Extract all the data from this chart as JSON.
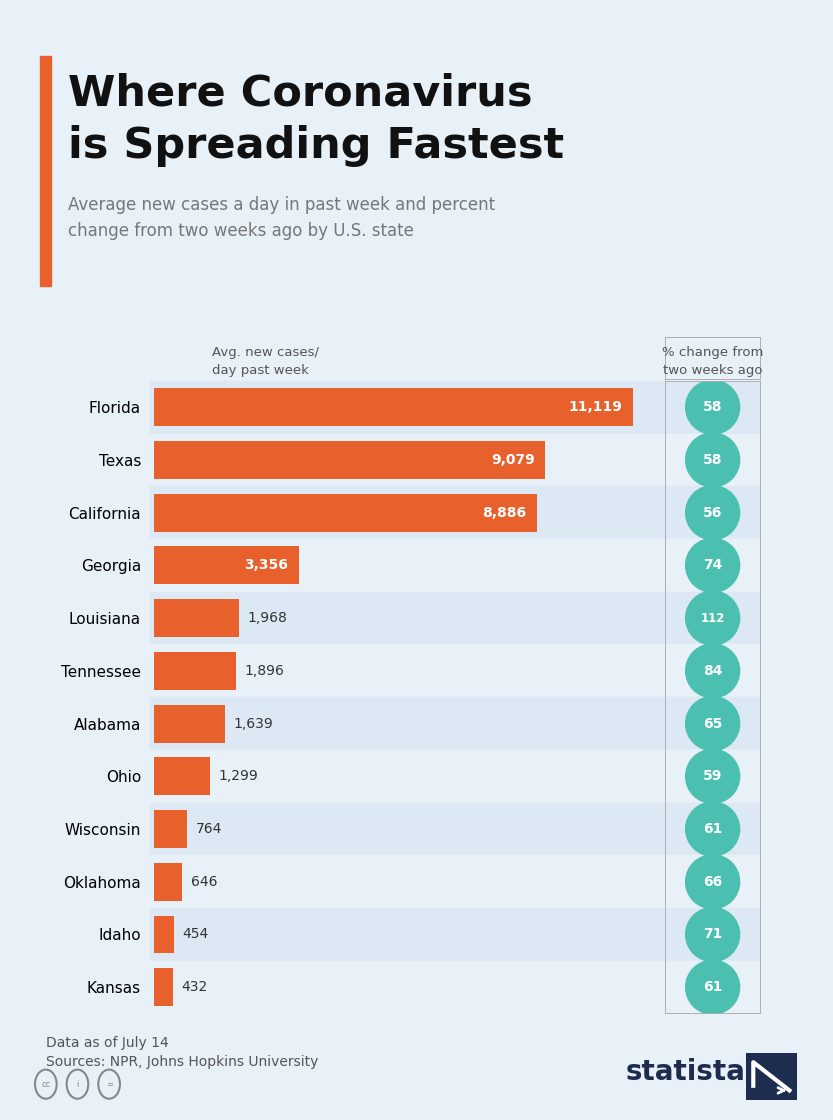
{
  "title_line1": "Where Coronavirus",
  "title_line2": "is Spreading Fastest",
  "subtitle": "Average new cases a day in past week and percent\nchange from two weeks ago by U.S. state",
  "col_header_left": "Avg. new cases/\nday past week",
  "col_header_right": "% change from\ntwo weeks ago",
  "states": [
    "Florida",
    "Texas",
    "California",
    "Georgia",
    "Louisiana",
    "Tennessee",
    "Alabama",
    "Ohio",
    "Wisconsin",
    "Oklahoma",
    "Idaho",
    "Kansas"
  ],
  "values": [
    11119,
    9079,
    8886,
    3356,
    1968,
    1896,
    1639,
    1299,
    764,
    646,
    454,
    432
  ],
  "value_labels": [
    "11,119",
    "9,079",
    "8,886",
    "3,356",
    "1,968",
    "1,896",
    "1,639",
    "1,299",
    "764",
    "646",
    "454",
    "432"
  ],
  "pct_changes": [
    58,
    58,
    56,
    74,
    112,
    84,
    65,
    59,
    61,
    66,
    71,
    61
  ],
  "bar_color": "#E8602C",
  "bg_color_even": "#dce9f5",
  "bg_color_odd": "#e8f0f8",
  "fig_bg": "#e8f0f8",
  "accent_color": "#E8602C",
  "teal_color": "#4BBFB0",
  "title_color": "#111111",
  "subtitle_color": "#777777",
  "label_color_dark": "#333333",
  "footer_text1": "Data as of July 14",
  "footer_text2": "Sources: NPR, Johns Hopkins University",
  "max_value": 11500
}
